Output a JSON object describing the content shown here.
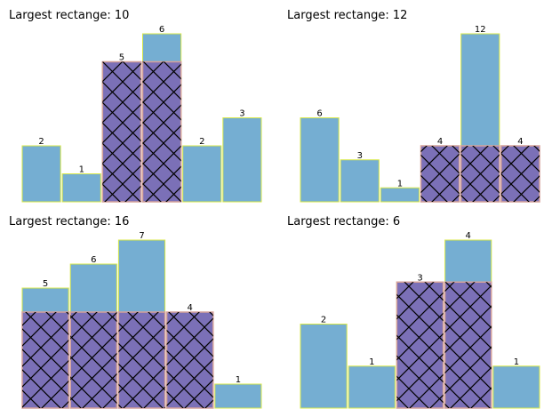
{
  "chart_data": [
    {
      "type": "bar",
      "title": "Largest rectange: 10",
      "values": [
        2,
        1,
        5,
        6,
        2,
        3
      ],
      "labels": [
        "2",
        "1",
        "5",
        "6",
        "2",
        "3"
      ],
      "highlight": {
        "start_index": 2,
        "end_index": 3,
        "height": 5
      },
      "ylim": [
        0,
        6
      ],
      "grid": false
    },
    {
      "type": "bar",
      "title": "Largest rectange: 12",
      "values": [
        6,
        3,
        1,
        4,
        12,
        4
      ],
      "labels": [
        "6",
        "3",
        "1",
        "4",
        "12",
        "4"
      ],
      "highlight": {
        "start_index": 3,
        "end_index": 5,
        "height": 4
      },
      "ylim": [
        0,
        12
      ],
      "grid": false
    },
    {
      "type": "bar",
      "title": "Largest rectange: 16",
      "values": [
        5,
        6,
        7,
        4,
        1
      ],
      "labels": [
        "5",
        "6",
        "7",
        "4",
        "1"
      ],
      "highlight": {
        "start_index": 0,
        "end_index": 3,
        "height": 4
      },
      "ylim": [
        0,
        7
      ],
      "grid": false
    },
    {
      "type": "bar",
      "title": "Largest rectange:  6",
      "values": [
        2,
        1,
        3,
        4,
        1
      ],
      "labels": [
        "2",
        "1",
        "3",
        "4",
        "1"
      ],
      "highlight": {
        "start_index": 2,
        "end_index": 3,
        "height": 3
      },
      "ylim": [
        0,
        4
      ],
      "grid": false
    }
  ],
  "colors": {
    "bar_fill": "#75aed2",
    "bar_edge": "#d8e848",
    "highlight_fill": "#7b70b7",
    "highlight_hatch": "#000000",
    "highlight_divider": "#d5a29a"
  }
}
